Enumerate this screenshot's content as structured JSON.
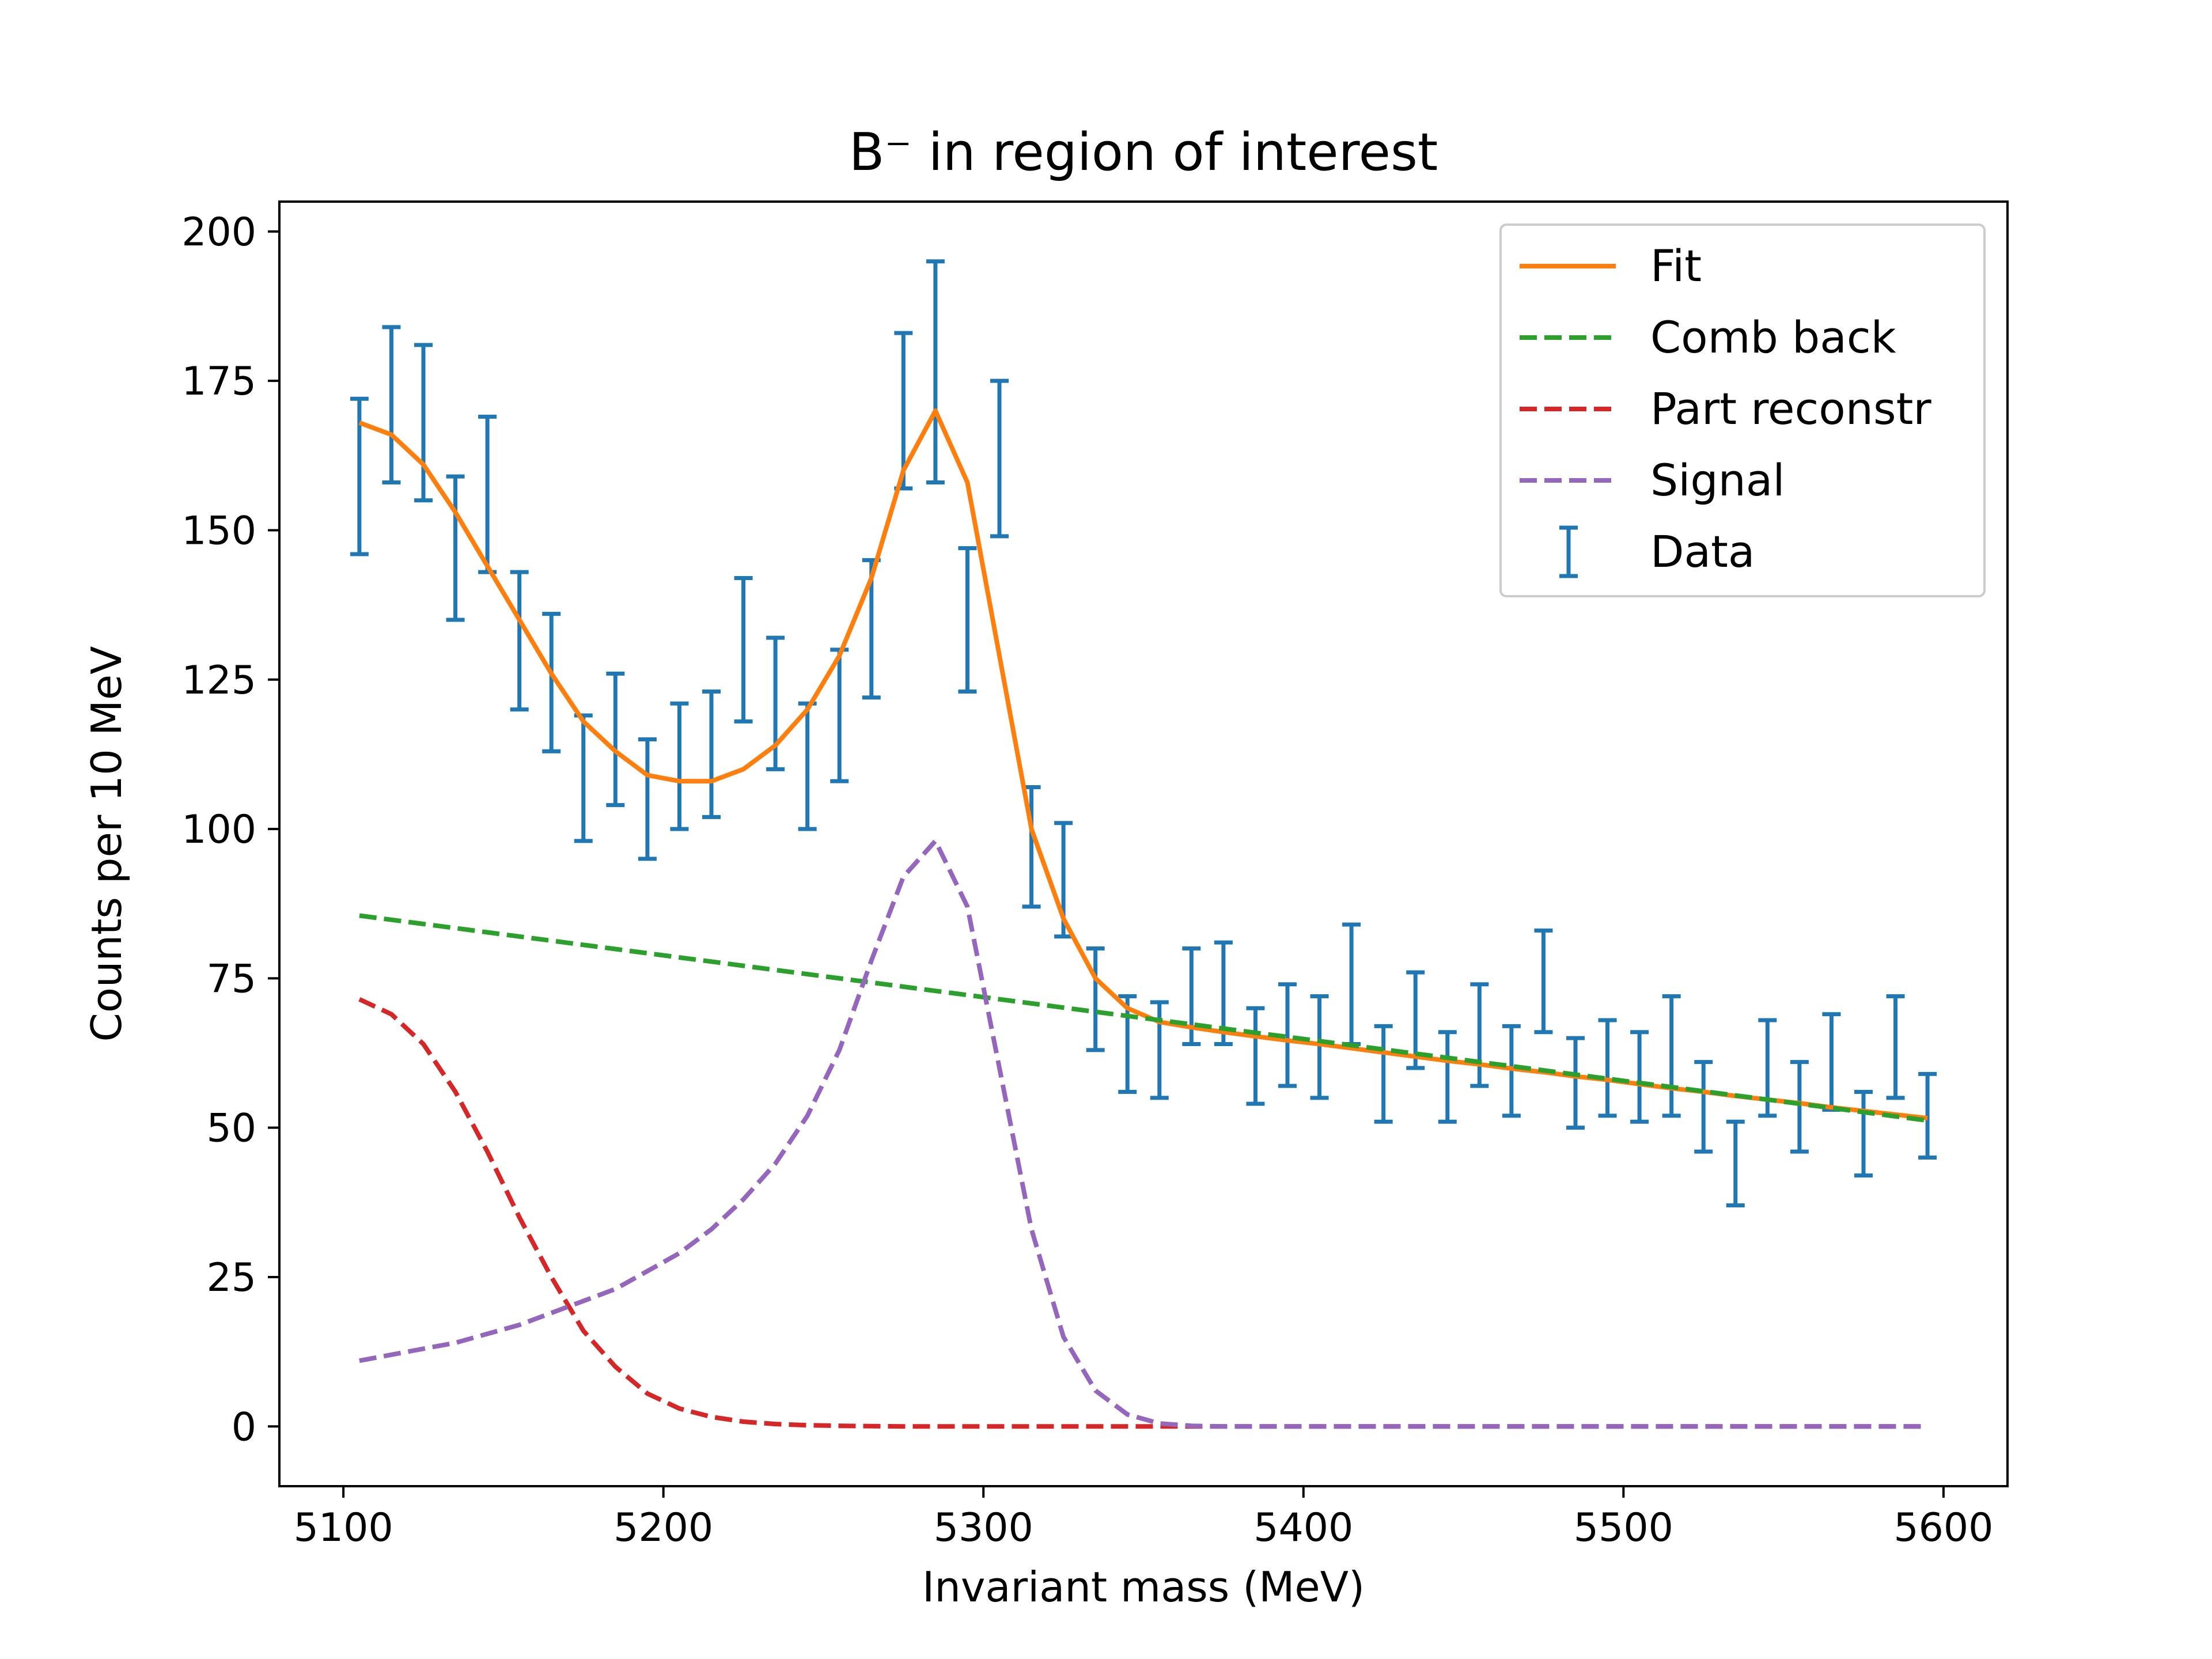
{
  "chart_data": {
    "type": "line",
    "title": "B⁻ in region of interest",
    "xlabel": "Invariant mass (MeV)",
    "ylabel": "Counts per 10 MeV",
    "xlim": [
      5080,
      5620
    ],
    "ylim": [
      -10,
      205
    ],
    "xticks": [
      5100,
      5200,
      5300,
      5400,
      5500,
      5600
    ],
    "yticks": [
      0,
      25,
      50,
      75,
      100,
      125,
      150,
      175,
      200
    ],
    "grid": false,
    "legend_position": "top-right",
    "legend": [
      "Fit",
      "Comb back",
      "Part reconstr",
      "Signal",
      "Data"
    ],
    "colors": {
      "fit": "#ff7f0e",
      "comb_back": "#2ca02c",
      "part_reconstr": "#d62728",
      "signal": "#9467bd",
      "data": "#1f77b4"
    },
    "x": [
      5105,
      5115,
      5125,
      5135,
      5145,
      5155,
      5165,
      5175,
      5185,
      5195,
      5205,
      5215,
      5225,
      5235,
      5245,
      5255,
      5265,
      5275,
      5285,
      5295,
      5305,
      5315,
      5325,
      5335,
      5345,
      5355,
      5365,
      5375,
      5385,
      5395,
      5405,
      5415,
      5425,
      5435,
      5445,
      5455,
      5465,
      5475,
      5485,
      5495,
      5505,
      5515,
      5525,
      5535,
      5545,
      5555,
      5565,
      5575,
      5585,
      5595
    ],
    "series": [
      {
        "name": "Fit",
        "style": "solid",
        "values": [
          168,
          166,
          161,
          153,
          144,
          135,
          126,
          118,
          113,
          109,
          108,
          108,
          110,
          114,
          120,
          129,
          142,
          160,
          170,
          158,
          129,
          100,
          85,
          75,
          70,
          67.7,
          66.8,
          66,
          65.3,
          64.6,
          64,
          63.3,
          62.6,
          61.9,
          61.2,
          60.6,
          59.9,
          59.3,
          58.6,
          58,
          57.3,
          56.6,
          56,
          55.3,
          54.7,
          54.1,
          53.4,
          52.8,
          52.2,
          51.6
        ]
      },
      {
        "name": "Comb back",
        "style": "dashed",
        "values": [
          85.5,
          84.8,
          84.1,
          83.4,
          82.7,
          82,
          81.3,
          80.6,
          79.9,
          79.2,
          78.5,
          77.8,
          77.1,
          76.4,
          75.7,
          75,
          74.3,
          73.6,
          72.9,
          72.2,
          71.5,
          70.8,
          70.1,
          69.4,
          68.7,
          68,
          67.3,
          66.6,
          65.9,
          65.2,
          64.5,
          63.8,
          63.1,
          62.4,
          61.7,
          61,
          60.3,
          59.6,
          58.9,
          58.2,
          57.5,
          56.8,
          56.1,
          55.4,
          54.7,
          54,
          53.3,
          52.6,
          51.9,
          51.2
        ]
      },
      {
        "name": "Part reconstr",
        "style": "dashed",
        "values": [
          71.5,
          69,
          64,
          56,
          46,
          35,
          25,
          16,
          10,
          5.5,
          3,
          1.6,
          0.8,
          0.4,
          0.2,
          0.1,
          0.05,
          0,
          0,
          0,
          0,
          0,
          0,
          0,
          0,
          0,
          0,
          0,
          0,
          0,
          0,
          0,
          0,
          0,
          0,
          0,
          0,
          0,
          0,
          0,
          0,
          0,
          0,
          0,
          0,
          0,
          0,
          0,
          0,
          0
        ]
      },
      {
        "name": "Signal",
        "style": "dashed",
        "values": [
          11,
          12,
          13,
          14,
          15.5,
          17,
          19,
          21,
          23,
          26,
          29,
          33,
          38,
          44,
          52,
          63,
          78,
          92,
          98,
          87,
          60,
          33,
          15,
          6,
          2,
          0.5,
          0.1,
          0,
          0,
          0,
          0,
          0,
          0,
          0,
          0,
          0,
          0,
          0,
          0,
          0,
          0,
          0,
          0,
          0,
          0,
          0,
          0,
          0,
          0,
          0
        ]
      },
      {
        "name": "Data",
        "style": "errorbar",
        "lower": [
          146,
          158,
          155,
          135,
          143,
          120,
          113,
          98,
          104,
          95,
          100,
          102,
          118,
          110,
          100,
          108,
          122,
          157,
          158,
          123,
          149,
          87,
          82,
          63,
          56,
          55,
          64,
          64,
          54,
          57,
          55,
          64,
          51,
          60,
          51,
          57,
          52,
          66,
          50,
          52,
          51,
          52,
          46,
          37,
          52,
          46,
          53,
          42,
          55,
          45
        ],
        "upper": [
          172,
          184,
          181,
          159,
          169,
          143,
          136,
          119,
          126,
          115,
          121,
          123,
          142,
          132,
          121,
          130,
          145,
          183,
          195,
          147,
          175,
          107,
          101,
          80,
          72,
          71,
          80,
          81,
          70,
          74,
          72,
          84,
          67,
          76,
          66,
          74,
          67,
          83,
          65,
          68,
          66,
          72,
          61,
          51,
          68,
          61,
          69,
          56,
          72,
          59
        ]
      }
    ]
  }
}
